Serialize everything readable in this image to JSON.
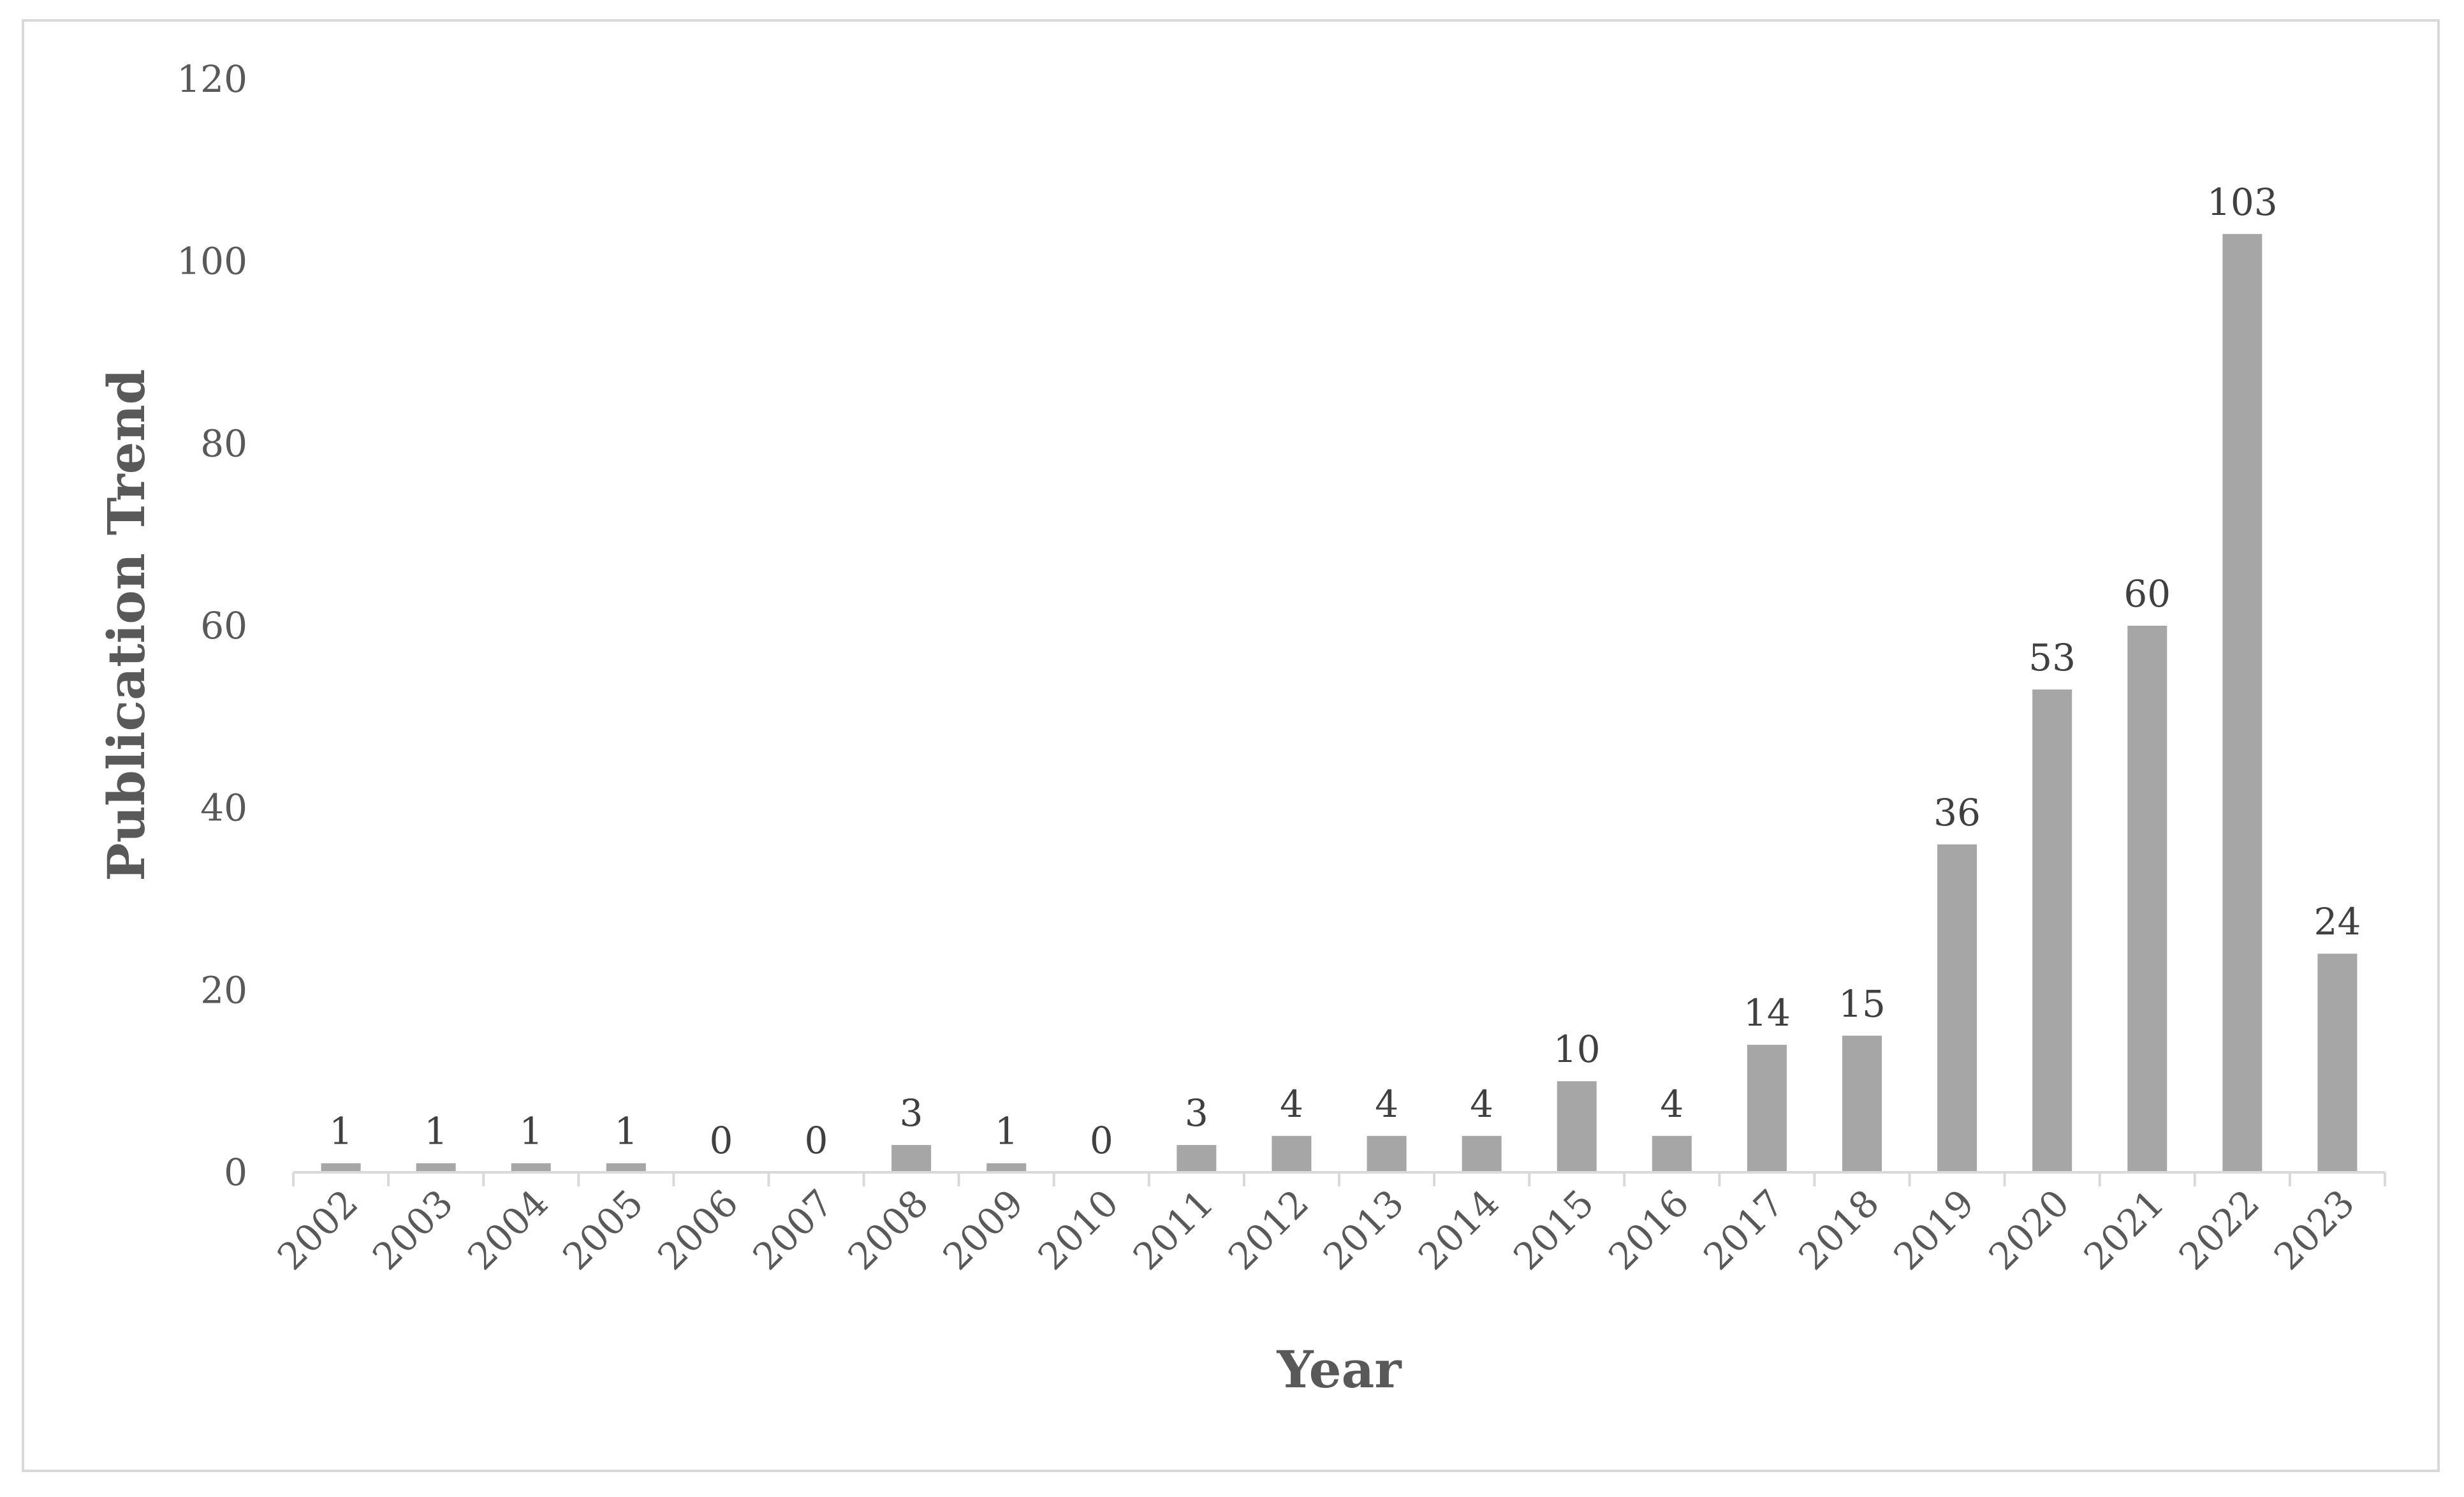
{
  "chart_data": {
    "type": "bar",
    "title": "",
    "xlabel": "Year",
    "ylabel": "Publication Trend",
    "categories": [
      "2002",
      "2003",
      "2004",
      "2005",
      "2006",
      "2007",
      "2008",
      "2009",
      "2010",
      "2011",
      "2012",
      "2013",
      "2014",
      "2015",
      "2016",
      "2017",
      "2018",
      "2019",
      "2020",
      "2021",
      "2022",
      "2023"
    ],
    "values": [
      1,
      1,
      1,
      1,
      0,
      0,
      3,
      1,
      0,
      3,
      4,
      4,
      4,
      10,
      4,
      14,
      15,
      36,
      53,
      60,
      103,
      24
    ],
    "ylim": [
      0,
      120
    ],
    "yticks": [
      0,
      20,
      40,
      60,
      80,
      100,
      120
    ],
    "grid": false,
    "legend": "none",
    "data_labels": true,
    "bar_color": "#a6a6a6",
    "axis_color": "#d9d9d9",
    "text_color": "#595959"
  }
}
